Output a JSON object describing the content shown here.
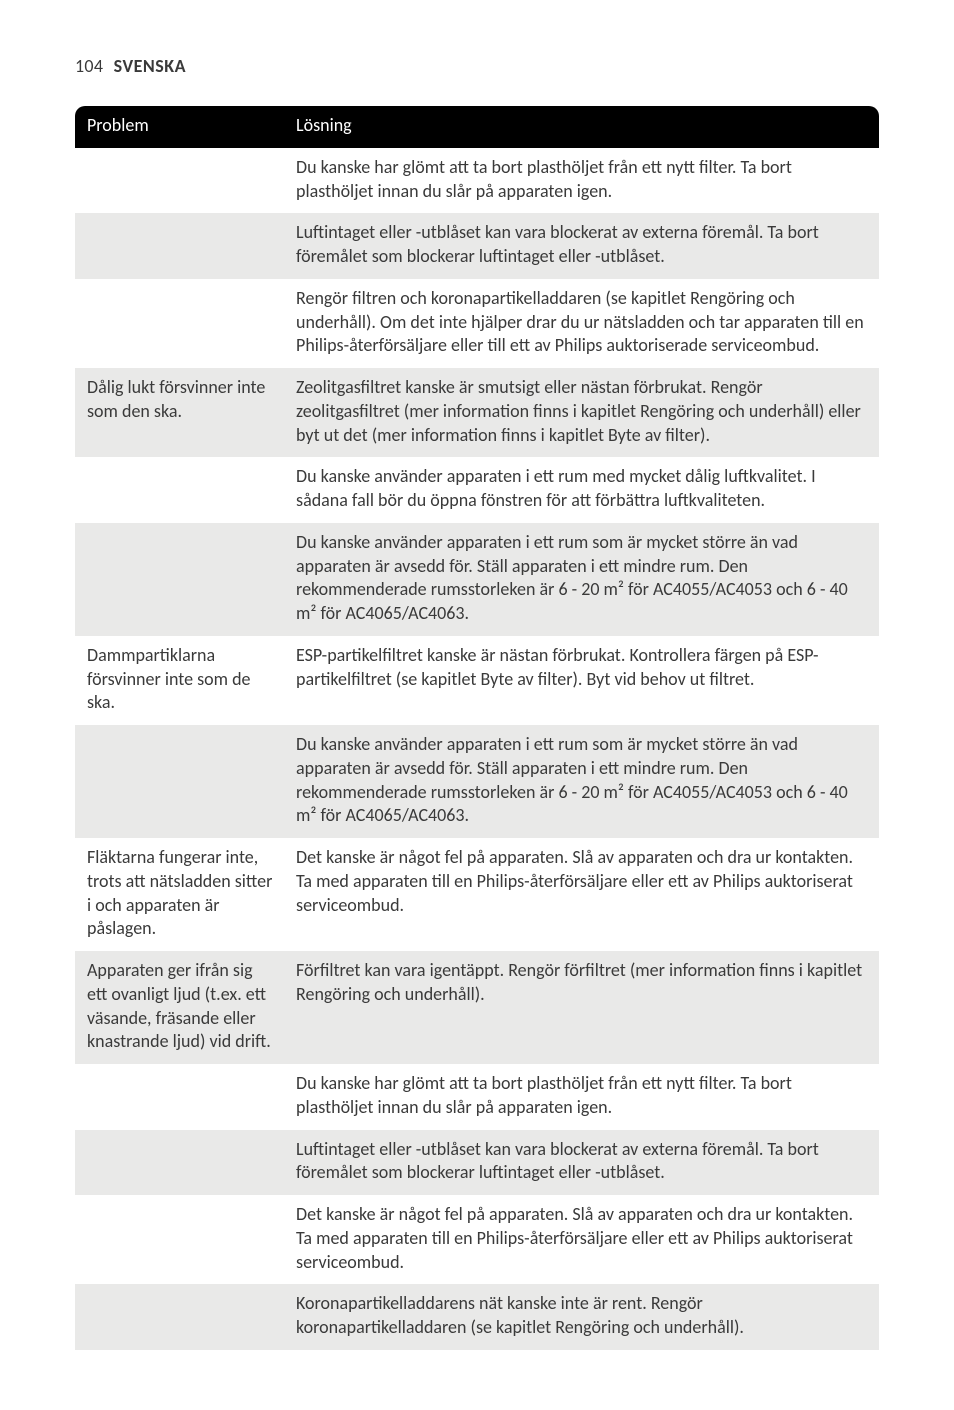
{
  "page": {
    "number": "104",
    "language": "SVENSKA"
  },
  "table": {
    "headers": {
      "problem": "Problem",
      "solution": "Lösning"
    },
    "rows": [
      {
        "problem": "",
        "solution": "Du kanske har glömt att ta bort plasthöljet från ett nytt filter. Ta bort plasthöljet innan du slår på apparaten igen."
      },
      {
        "problem": "",
        "solution": "Luftintaget eller -utblåset kan vara blockerat av externa föremål. Ta bort föremålet som blockerar luftintaget eller -utblåset."
      },
      {
        "problem": "",
        "solution": "Rengör filtren och koronapartikelladdaren (se kapitlet Rengöring och underhåll). Om det inte hjälper drar du ur nätsladden och tar apparaten till en Philips-återförsäljare eller till ett av Philips auktoriserade serviceombud."
      },
      {
        "problem": "Dålig lukt försvinner inte som den ska.",
        "solution": "Zeolitgasfiltret kanske är smutsigt eller nästan förbrukat. Rengör zeolitgasfiltret (mer information finns i kapitlet Rengöring och underhåll) eller byt ut det (mer information finns i kapitlet Byte av filter)."
      },
      {
        "problem": "",
        "solution": "Du kanske använder apparaten i ett rum med mycket dålig luftkvalitet. I sådana fall bör du öppna fönstren för att förbättra luftkvaliteten."
      },
      {
        "problem": "",
        "solution": "Du kanske använder apparaten i ett rum som är mycket större än vad apparaten är avsedd för. Ställ apparaten i ett mindre rum. Den rekommenderade rumsstorleken är 6 - 20 m² för AC4055/AC4053 och 6 - 40 m² för AC4065/AC4063."
      },
      {
        "problem": "Dammpartiklarna försvinner inte som de ska.",
        "solution": "ESP-partikelfiltret kanske är nästan förbrukat. Kontrollera färgen på ESP-partikelfiltret (se kapitlet Byte av filter). Byt vid behov ut filtret."
      },
      {
        "problem": "",
        "solution": "Du kanske använder apparaten i ett rum som är mycket större än vad apparaten är avsedd för. Ställ apparaten i ett mindre rum. Den rekommenderade rumsstorleken är 6 - 20 m² för AC4055/AC4053 och 6 - 40 m² för AC4065/AC4063."
      },
      {
        "problem": "Fläktarna fungerar inte, trots att nätsladden sitter i och apparaten är påslagen.",
        "solution": "Det kanske är något fel på apparaten. Slå av apparaten och dra ur kontakten. Ta med apparaten till en Philips-återförsäljare eller ett av Philips auktoriserat serviceombud."
      },
      {
        "problem": "Apparaten ger ifrån sig ett ovanligt ljud (t.ex. ett väsande, fräsande eller knastrande ljud) vid drift.",
        "solution": "Förfiltret kan vara igentäppt. Rengör förfiltret (mer information finns i kapitlet Rengöring och underhåll)."
      },
      {
        "problem": "",
        "solution": "Du kanske har glömt att ta bort plasthöljet från ett nytt filter. Ta bort plasthöljet innan du slår på apparaten igen."
      },
      {
        "problem": "",
        "solution": "Luftintaget eller -utblåset kan vara blockerat av externa föremål. Ta bort föremålet som blockerar luftintaget eller -utblåset."
      },
      {
        "problem": "",
        "solution": "Det kanske är något fel på apparaten. Slå av apparaten och dra ur kontakten. Ta med apparaten till en Philips-återförsäljare eller ett av Philips auktoriserat serviceombud."
      },
      {
        "problem": "",
        "solution": "Koronapartikelladdarens nät kanske inte är rent. Rengör koronapartikelladdaren (se kapitlet Rengöring och underhåll)."
      }
    ],
    "alt_row_indices": [
      1,
      3,
      5,
      7,
      9,
      11,
      13
    ]
  },
  "style": {
    "background_color": "#ffffff",
    "text_color": "#3a3a3a",
    "header_bg": "#000000",
    "header_text": "#ffffff",
    "alt_row_bg": "#e9e9e8",
    "fontsize_body": 18,
    "fontsize_header": 18
  }
}
